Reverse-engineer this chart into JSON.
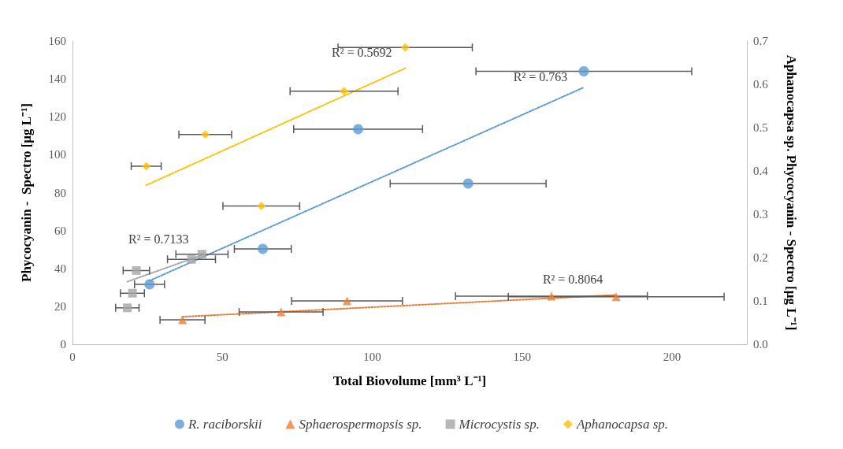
{
  "chart_data": {
    "type": "scatter",
    "xlabel": "Total Biovolume [mm³ L⁻¹]",
    "ylabel": "Phycocyanin -  Spectro [µg L⁻¹]",
    "y2label": "Aphanocapsa sp. Phycocyanin - Spectro [µg L⁻¹]",
    "xlim": [
      0,
      225
    ],
    "xticks": [
      0,
      50,
      100,
      150,
      200
    ],
    "ylim": [
      0,
      160
    ],
    "yticks": [
      0,
      20,
      40,
      60,
      80,
      100,
      120,
      140,
      160
    ],
    "y2lim": [
      0,
      0.7
    ],
    "y2ticks": [
      {
        "value": 0,
        "label": "0.0"
      },
      {
        "value": 0.1,
        "label": "0.1"
      },
      {
        "value": 0.2,
        "label": "0.2"
      },
      {
        "value": 0.3,
        "label": "0.3"
      },
      {
        "value": 0.4,
        "label": "0.4"
      },
      {
        "value": 0.5,
        "label": "0.5"
      },
      {
        "value": 0.6,
        "label": "0.6"
      },
      {
        "value": 0.7,
        "label": "0.7"
      }
    ],
    "grid": false,
    "legend": "bottom",
    "series": [
      {
        "name": "R. raciborskii",
        "color": "#5b9bd5",
        "marker": "circle",
        "x": [
          170.6,
          95.3,
          132,
          63.5,
          25.7
        ],
        "values": [
          144,
          113.5,
          84.8,
          50.3,
          31.6
        ],
        "xerrors": [
          36,
          21.5,
          26,
          9.5,
          5
        ]
      },
      {
        "name": "Sphaerospermopsis sp.",
        "color": "#ed7d31",
        "marker": "triangle",
        "x": [
          36.7,
          69.6,
          91.6,
          159.8,
          181.4
        ],
        "values": [
          12.9,
          17,
          22.9,
          25.4,
          25
        ],
        "xerrors": [
          7.5,
          14,
          18.5,
          32,
          36
        ]
      },
      {
        "name": "Microcystis sp.",
        "color": "#a5a5a5",
        "marker": "square",
        "x": [
          18.3,
          20,
          21.3,
          39.7,
          43.2
        ],
        "values": [
          19.2,
          26.9,
          38.9,
          44.8,
          47.5
        ],
        "xerrors": [
          3.9,
          4,
          4.4,
          8,
          8.7
        ]
      },
      {
        "name": "Aphanocapsa sp.",
        "color": "#ffc000",
        "marker": "diamond",
        "axis": "y2",
        "x": [
          111,
          90.6,
          44.3,
          24.6,
          63
        ],
        "values": [
          0.685,
          0.584,
          0.484,
          0.411,
          0.319
        ],
        "xerrors": [
          22.4,
          18,
          8.8,
          5,
          12.8
        ]
      },
      {
        "type": "line",
        "color": "#5b9bd5",
        "line_style": "dotted",
        "marker": "none",
        "x": [
          25.7,
          170.6
        ],
        "values": [
          33.5,
          135.5
        ]
      },
      {
        "type": "line",
        "color": "#ed7d31",
        "line_style": "dotted",
        "marker": "none",
        "x": [
          36.7,
          181.4
        ],
        "values": [
          14.5,
          26
        ]
      },
      {
        "type": "line",
        "color": "#a5a5a5",
        "line_style": "dotted",
        "marker": "none",
        "x": [
          18.3,
          43.2
        ],
        "values": [
          33,
          47
        ]
      },
      {
        "type": "line",
        "color": "#ffc000",
        "line_style": "dotted",
        "marker": "none",
        "axis": "y2",
        "x": [
          24.6,
          111
        ],
        "values": [
          0.367,
          0.637
        ]
      }
    ],
    "annotations": [
      "R² = 0.763",
      "R² = 0.8064",
      "R² = 0.7133",
      "R² = 0.5692"
    ]
  }
}
